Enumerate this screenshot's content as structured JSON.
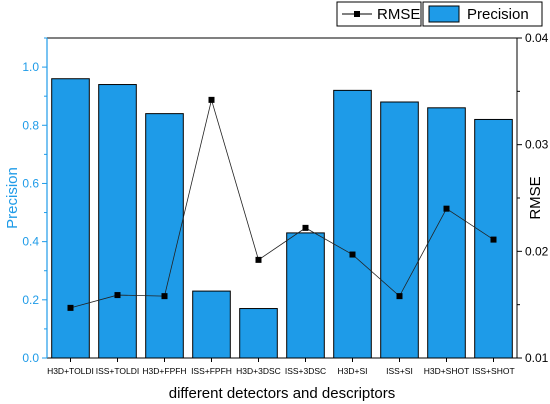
{
  "chart_data": {
    "type": "bar",
    "categories": [
      "H3D+TOLDI",
      "ISS+TOLDI",
      "H3D+FPFH",
      "ISS+FPFH",
      "H3D+3DSC",
      "ISS+3DSC",
      "H3D+SI",
      "ISS+SI",
      "H3D+SHOT",
      "ISS+SHOT"
    ],
    "xlabel": "different detectors and descriptors",
    "ylabel": "Precision",
    "y2label": "RMSE",
    "ylim": [
      0.0,
      1.1
    ],
    "y2lim": [
      0.01,
      0.04
    ],
    "yticks": [
      "0.0",
      "0.2",
      "0.4",
      "0.6",
      "0.8",
      "1.0"
    ],
    "y2ticks": [
      "0.01",
      "0.02",
      "0.03",
      "0.04"
    ],
    "series": [
      {
        "name": "Precision",
        "kind": "bar",
        "axis": "left",
        "color": "#1e9be8",
        "values": [
          0.96,
          0.94,
          0.84,
          0.23,
          0.17,
          0.43,
          0.92,
          0.88,
          0.86,
          0.82
        ]
      },
      {
        "name": "RMSE",
        "kind": "line",
        "axis": "right",
        "color": "#000000",
        "values": [
          0.0147,
          0.0159,
          0.0158,
          0.0342,
          0.0192,
          0.0222,
          0.0197,
          0.0158,
          0.024,
          0.0211
        ]
      }
    ],
    "legend": {
      "position": "top-right",
      "items": [
        "RMSE",
        "Precision"
      ]
    },
    "grid": false
  }
}
